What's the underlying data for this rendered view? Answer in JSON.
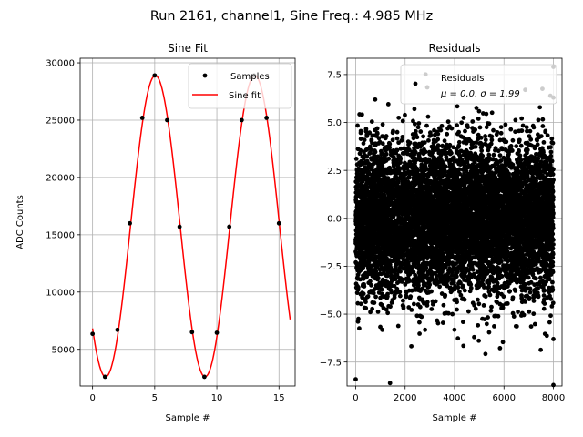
{
  "suptitle": "Run 2161, channel1, Sine Freq.: 4.985 MHz",
  "chart_data": [
    {
      "type": "scatter+line",
      "title": "Sine Fit",
      "xlabel": "Sample #",
      "ylabel": "ADC Counts",
      "xlim": [
        -1,
        16.3
      ],
      "ylim": [
        1800,
        30400
      ],
      "xticks": [
        0,
        5,
        10,
        15
      ],
      "yticks": [
        5000,
        10000,
        15000,
        20000,
        25000,
        30000
      ],
      "grid": true,
      "legend": "upper right",
      "series": [
        {
          "name": "Samples",
          "style": "points",
          "color": "#000000",
          "x": [
            0,
            1,
            2,
            3,
            4,
            5,
            6,
            7,
            8,
            9,
            10,
            11,
            12,
            13,
            14,
            15
          ],
          "y": [
            6350,
            2600,
            6700,
            16000,
            25200,
            28900,
            25000,
            15700,
            6500,
            2600,
            6450,
            15700,
            25000,
            28900,
            25200,
            16000
          ]
        },
        {
          "name": "Sine fit",
          "style": "line",
          "color": "#ff0000",
          "model": {
            "amplitude": 13150,
            "offset": 15750,
            "period": 8.0,
            "peak_at": 5.05,
            "x_start": 0,
            "x_end": 15.9
          }
        }
      ]
    },
    {
      "type": "scatter",
      "title": "Residuals",
      "xlabel": "Sample #",
      "ylabel": "",
      "xlim": [
        -350,
        8350
      ],
      "ylim": [
        -8.75,
        8.35
      ],
      "xticks": [
        0,
        2000,
        4000,
        6000,
        8000
      ],
      "yticks": [
        -7.5,
        -5.0,
        -2.5,
        0.0,
        2.5,
        5.0,
        7.5
      ],
      "grid": true,
      "legend": "upper right",
      "series": [
        {
          "name": "Residuals",
          "name_line2": "μ = 0.0, σ = 1.99",
          "style": "points",
          "color": "#000000",
          "count": 8000,
          "x_range": [
            0,
            8000
          ],
          "mean": 0.0,
          "sigma": 1.99,
          "x_outliers": [
            0,
            8000,
            8000,
            8000,
            8000
          ],
          "y_outliers": [
            -8.4,
            -8.7,
            7.9,
            6.3,
            -6.3
          ]
        }
      ]
    }
  ]
}
